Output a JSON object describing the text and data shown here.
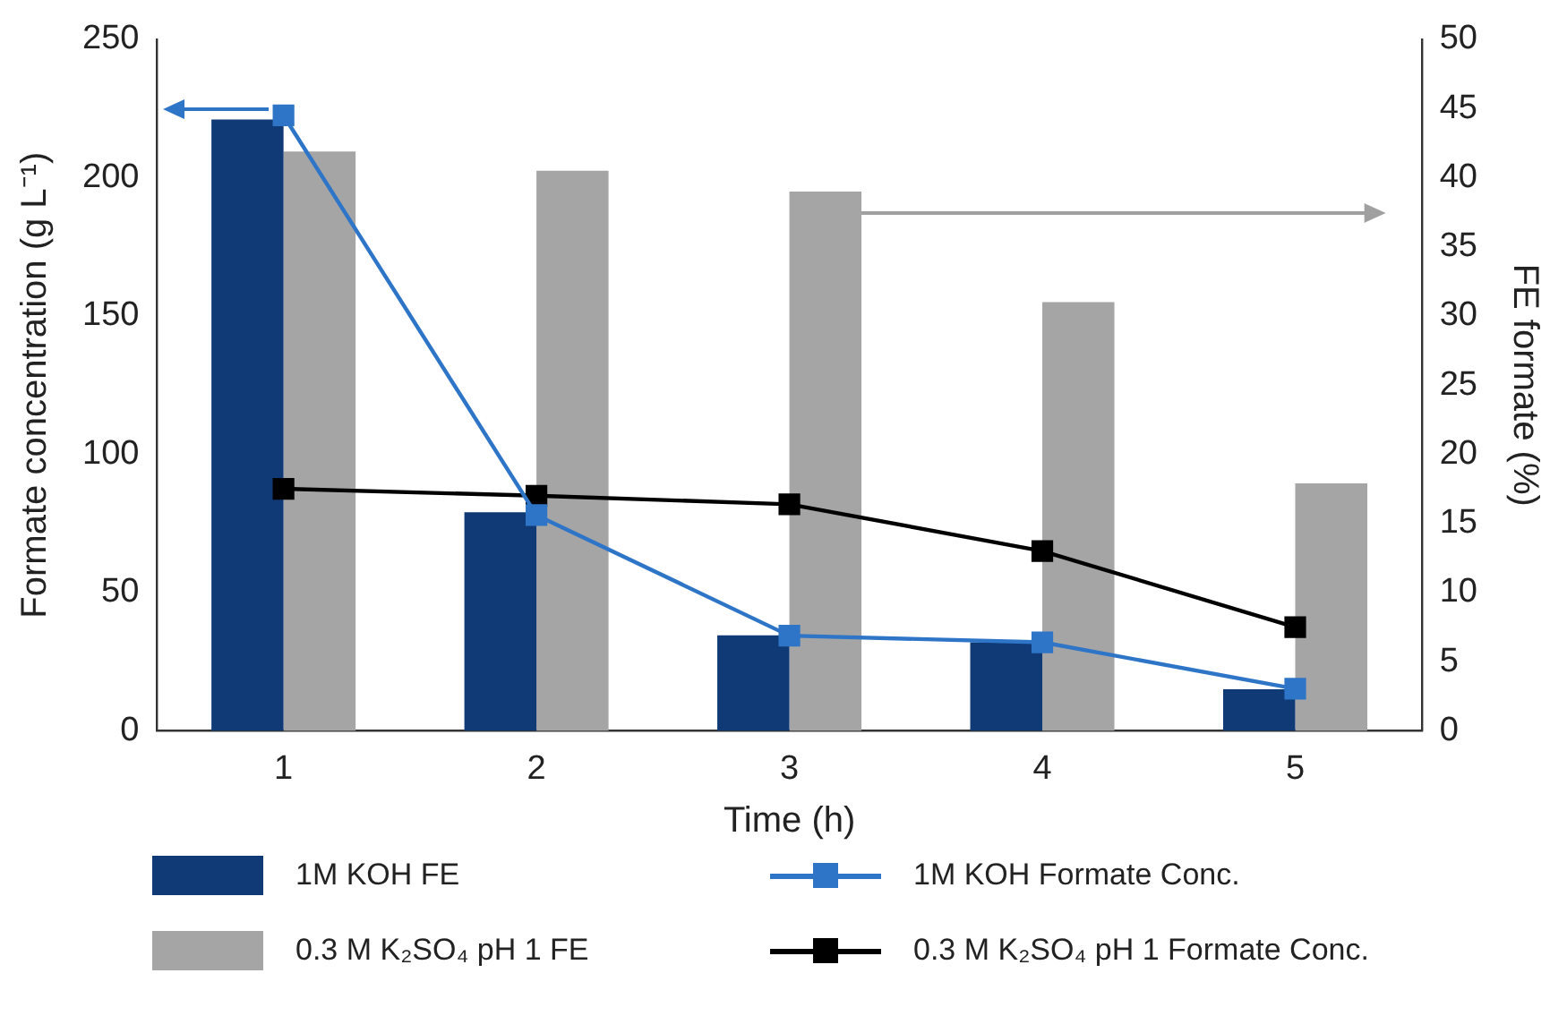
{
  "chart_data": {
    "type": "bar",
    "xlabel": "Time (h)",
    "ylabel": "Formate concentration (g L⁻¹)",
    "y2label": "FE formate (%)",
    "categories": [
      "1",
      "2",
      "3",
      "4",
      "5"
    ],
    "series": [
      {
        "name": "1M KOH FE",
        "axis": "y2",
        "color": "#0f3a75",
        "values": [
          44.2,
          15.8,
          6.9,
          6.4,
          3.0
        ]
      },
      {
        "name": "1M KOH Formate Conc.",
        "type": "line",
        "color": "#2e75c8",
        "values": [
          222.5,
          78,
          34.4,
          32,
          15.2
        ]
      },
      {
        "name": "0.3 M K₂SO₄ pH 1 FE",
        "axis": "y2",
        "color": "#a5a5a5",
        "values": [
          41.9,
          40.5,
          39,
          31,
          17.9
        ]
      },
      {
        "name": "0.3 M K₂SO₄ pH 1 Formate Conc.",
        "type": "line",
        "color": "#000000",
        "values": [
          87.5,
          85,
          81.9,
          65,
          37.5
        ]
      }
    ],
    "ylim": [
      0,
      250
    ],
    "yticks": [
      0,
      50,
      100,
      150,
      200,
      250
    ],
    "y2lim": [
      0,
      50
    ],
    "y2ticks": [
      0,
      5,
      10,
      15,
      20,
      25,
      30,
      35,
      40,
      45,
      50
    ],
    "grid": false,
    "legend": "bottom",
    "marker": "square",
    "line_style": "solid"
  }
}
